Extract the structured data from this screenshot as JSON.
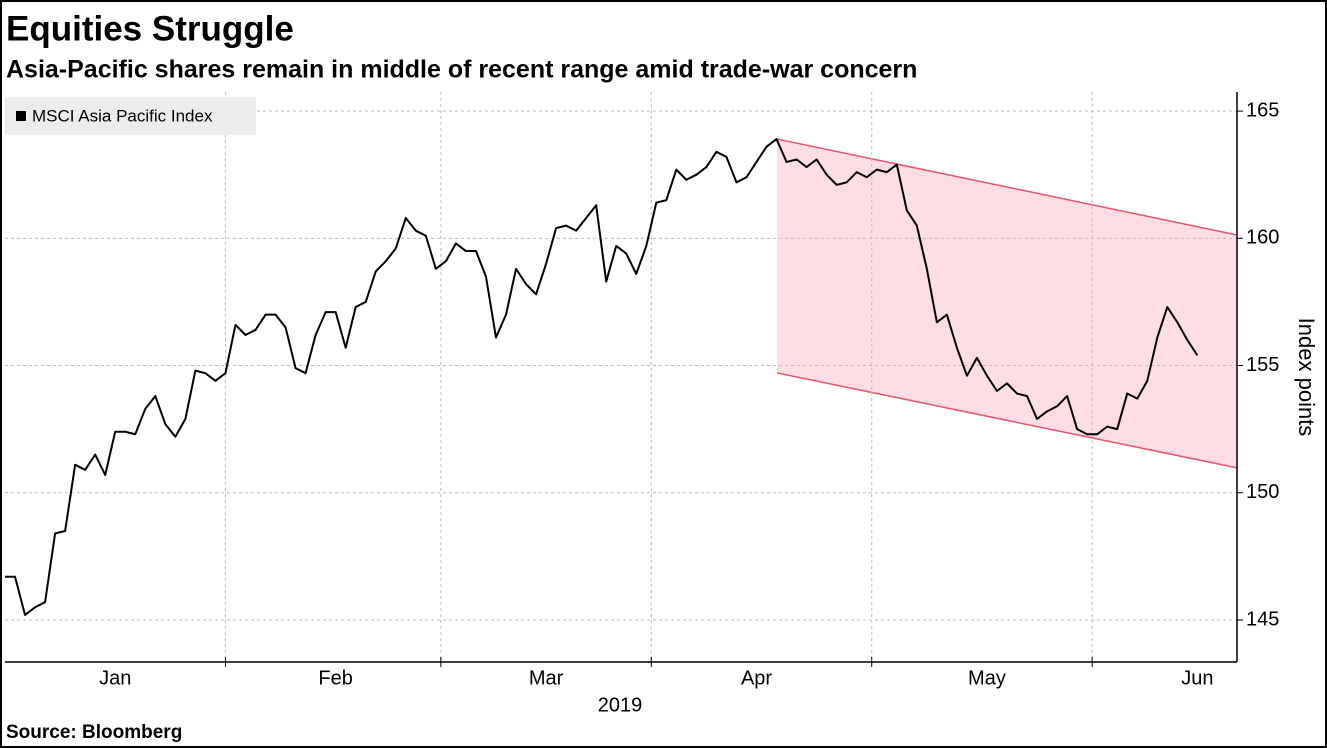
{
  "chart_data": {
    "type": "line",
    "title": "Equities Struggle",
    "subtitle": "Asia-Pacific shares remain in middle of recent range amid trade-war concern",
    "ylabel": "Index points",
    "xlabel": "2019",
    "source": "Source: Bloomberg",
    "categories": [
      null,
      null,
      null,
      null,
      null,
      null,
      null,
      null,
      null,
      null,
      null,
      "Jan",
      null,
      null,
      null,
      null,
      null,
      null,
      null,
      null,
      null,
      null,
      null,
      null,
      null,
      null,
      null,
      null,
      null,
      null,
      null,
      null,
      null,
      "Feb",
      null,
      null,
      null,
      null,
      null,
      null,
      null,
      null,
      null,
      null,
      null,
      null,
      null,
      null,
      null,
      null,
      null,
      null,
      null,
      null,
      "Mar",
      null,
      null,
      null,
      null,
      null,
      null,
      null,
      null,
      null,
      null,
      null,
      null,
      null,
      null,
      null,
      null,
      null,
      null,
      null,
      null,
      "Apr",
      null,
      null,
      null,
      null,
      null,
      null,
      null,
      null,
      null,
      null,
      null,
      null,
      null,
      null,
      null,
      null,
      null,
      null,
      null,
      null,
      null,
      null,
      "May",
      null,
      null,
      null,
      null,
      null,
      null,
      null,
      null,
      null,
      null,
      null,
      null,
      null,
      null,
      null,
      null,
      null,
      null,
      null,
      null,
      "Jun"
    ],
    "series": [
      {
        "name": "MSCI Asia Pacific Index",
        "color": "#000000",
        "values": [
          146.7,
          146.7,
          145.2,
          145.5,
          145.7,
          148.4,
          148.5,
          151.1,
          150.9,
          151.5,
          150.7,
          152.4,
          152.4,
          152.3,
          153.3,
          153.8,
          152.7,
          152.2,
          152.9,
          154.8,
          154.7,
          154.4,
          154.7,
          156.6,
          156.2,
          156.4,
          157.0,
          157.0,
          156.5,
          154.9,
          154.7,
          156.2,
          157.1,
          157.1,
          155.7,
          157.3,
          157.5,
          158.7,
          159.1,
          159.6,
          160.8,
          160.3,
          160.1,
          158.8,
          159.1,
          159.8,
          159.5,
          159.5,
          158.5,
          156.1,
          157.0,
          158.8,
          158.2,
          157.8,
          159.0,
          160.4,
          160.5,
          160.3,
          160.8,
          161.3,
          158.3,
          159.7,
          159.4,
          158.6,
          159.7,
          161.4,
          161.5,
          162.7,
          162.3,
          162.5,
          162.8,
          163.4,
          163.2,
          162.2,
          162.4,
          163.0,
          163.6,
          163.9,
          163.0,
          163.1,
          162.8,
          163.1,
          162.5,
          162.1,
          162.2,
          162.6,
          162.4,
          162.7,
          162.6,
          162.9,
          161.1,
          160.5,
          158.8,
          156.7,
          157.0,
          155.7,
          154.6,
          155.3,
          154.6,
          154.0,
          154.3,
          153.9,
          153.8,
          152.9,
          153.2,
          153.4,
          153.8,
          152.5,
          152.3,
          152.3,
          152.6,
          152.5,
          153.9,
          153.7,
          154.4,
          156.1,
          157.3,
          156.7,
          156.0,
          155.4
        ]
      }
    ],
    "channel": {
      "color": "#ffdde4",
      "edge_color": "#e8546e",
      "upper": [
        163.9,
        160.13
      ],
      "lower": [
        154.71,
        150.98
      ]
    },
    "ylim": [
      143.35,
      165.75
    ],
    "yticks": [
      145,
      150,
      155,
      160,
      165
    ],
    "grid": true
  }
}
